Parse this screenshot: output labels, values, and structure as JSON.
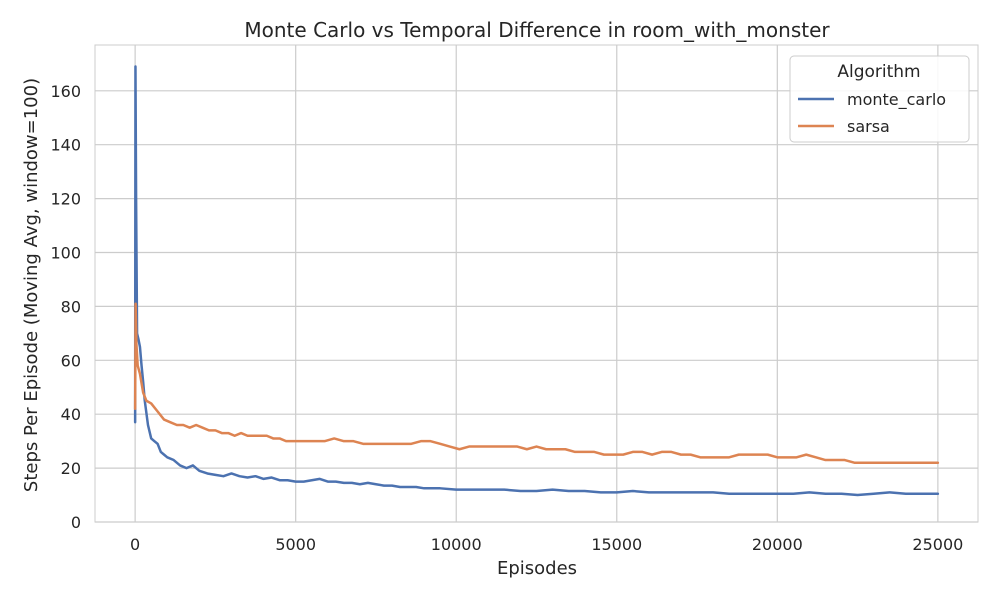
{
  "chart_data": {
    "type": "line",
    "title": "Monte Carlo vs Temporal Difference in room_with_monster",
    "xlabel": "Episodes",
    "ylabel": "Steps Per Episode (Moving Avg, window=100)",
    "xlim": [
      -1250,
      26250
    ],
    "ylim": [
      0,
      177
    ],
    "x_ticks": [
      0,
      5000,
      10000,
      15000,
      20000,
      25000
    ],
    "y_ticks": [
      0,
      20,
      40,
      60,
      80,
      100,
      120,
      140,
      160
    ],
    "grid": true,
    "legend": {
      "title": "Algorithm",
      "placement": "top-right"
    },
    "series": [
      {
        "name": "monte_carlo",
        "color": "#4c72b0",
        "points": [
          [
            0,
            37
          ],
          [
            10,
            169
          ],
          [
            30,
            120
          ],
          [
            60,
            70
          ],
          [
            100,
            68
          ],
          [
            150,
            65
          ],
          [
            200,
            58
          ],
          [
            250,
            52
          ],
          [
            300,
            45
          ],
          [
            400,
            36
          ],
          [
            500,
            31
          ],
          [
            600,
            30
          ],
          [
            700,
            29
          ],
          [
            800,
            26
          ],
          [
            900,
            25
          ],
          [
            1000,
            24
          ],
          [
            1200,
            23
          ],
          [
            1400,
            21
          ],
          [
            1600,
            20
          ],
          [
            1800,
            21
          ],
          [
            2000,
            19
          ],
          [
            2250,
            18
          ],
          [
            2500,
            17.5
          ],
          [
            2750,
            17
          ],
          [
            3000,
            18
          ],
          [
            3250,
            17
          ],
          [
            3500,
            16.5
          ],
          [
            3750,
            17
          ],
          [
            4000,
            16
          ],
          [
            4250,
            16.5
          ],
          [
            4500,
            15.5
          ],
          [
            4750,
            15.5
          ],
          [
            5000,
            15
          ],
          [
            5250,
            15
          ],
          [
            5500,
            15.5
          ],
          [
            5750,
            16
          ],
          [
            6000,
            15
          ],
          [
            6250,
            15
          ],
          [
            6500,
            14.5
          ],
          [
            6750,
            14.5
          ],
          [
            7000,
            14
          ],
          [
            7250,
            14.5
          ],
          [
            7500,
            14
          ],
          [
            7750,
            13.5
          ],
          [
            8000,
            13.5
          ],
          [
            8250,
            13
          ],
          [
            8500,
            13
          ],
          [
            8750,
            13
          ],
          [
            9000,
            12.5
          ],
          [
            9500,
            12.5
          ],
          [
            10000,
            12
          ],
          [
            10500,
            12
          ],
          [
            11000,
            12
          ],
          [
            11500,
            12
          ],
          [
            12000,
            11.5
          ],
          [
            12500,
            11.5
          ],
          [
            13000,
            12
          ],
          [
            13500,
            11.5
          ],
          [
            14000,
            11.5
          ],
          [
            14500,
            11
          ],
          [
            15000,
            11
          ],
          [
            15500,
            11.5
          ],
          [
            16000,
            11
          ],
          [
            16500,
            11
          ],
          [
            17000,
            11
          ],
          [
            17500,
            11
          ],
          [
            18000,
            11
          ],
          [
            18500,
            10.5
          ],
          [
            19000,
            10.5
          ],
          [
            19500,
            10.5
          ],
          [
            20000,
            10.5
          ],
          [
            20500,
            10.5
          ],
          [
            21000,
            11
          ],
          [
            21500,
            10.5
          ],
          [
            22000,
            10.5
          ],
          [
            22500,
            10
          ],
          [
            23000,
            10.5
          ],
          [
            23500,
            11
          ],
          [
            24000,
            10.5
          ],
          [
            24500,
            10.5
          ],
          [
            25000,
            10.5
          ]
        ]
      },
      {
        "name": "sarsa",
        "color": "#dd8452",
        "points": [
          [
            0,
            42
          ],
          [
            15,
            81
          ],
          [
            40,
            66
          ],
          [
            80,
            58
          ],
          [
            150,
            55
          ],
          [
            250,
            48
          ],
          [
            350,
            45
          ],
          [
            500,
            44
          ],
          [
            700,
            41
          ],
          [
            900,
            38
          ],
          [
            1100,
            37
          ],
          [
            1300,
            36
          ],
          [
            1500,
            36
          ],
          [
            1700,
            35
          ],
          [
            1900,
            36
          ],
          [
            2100,
            35
          ],
          [
            2300,
            34
          ],
          [
            2500,
            34
          ],
          [
            2700,
            33
          ],
          [
            2900,
            33
          ],
          [
            3100,
            32
          ],
          [
            3300,
            33
          ],
          [
            3500,
            32
          ],
          [
            3700,
            32
          ],
          [
            3900,
            32
          ],
          [
            4100,
            32
          ],
          [
            4300,
            31
          ],
          [
            4500,
            31
          ],
          [
            4700,
            30
          ],
          [
            5000,
            30
          ],
          [
            5300,
            30
          ],
          [
            5600,
            30
          ],
          [
            5900,
            30
          ],
          [
            6200,
            31
          ],
          [
            6500,
            30
          ],
          [
            6800,
            30
          ],
          [
            7100,
            29
          ],
          [
            7400,
            29
          ],
          [
            7700,
            29
          ],
          [
            8000,
            29
          ],
          [
            8300,
            29
          ],
          [
            8600,
            29
          ],
          [
            8900,
            30
          ],
          [
            9200,
            30
          ],
          [
            9500,
            29
          ],
          [
            9800,
            28
          ],
          [
            10100,
            27
          ],
          [
            10400,
            28
          ],
          [
            10700,
            28
          ],
          [
            11000,
            28
          ],
          [
            11300,
            28
          ],
          [
            11600,
            28
          ],
          [
            11900,
            28
          ],
          [
            12200,
            27
          ],
          [
            12500,
            28
          ],
          [
            12800,
            27
          ],
          [
            13100,
            27
          ],
          [
            13400,
            27
          ],
          [
            13700,
            26
          ],
          [
            14000,
            26
          ],
          [
            14300,
            26
          ],
          [
            14600,
            25
          ],
          [
            14900,
            25
          ],
          [
            15200,
            25
          ],
          [
            15500,
            26
          ],
          [
            15800,
            26
          ],
          [
            16100,
            25
          ],
          [
            16400,
            26
          ],
          [
            16700,
            26
          ],
          [
            17000,
            25
          ],
          [
            17300,
            25
          ],
          [
            17600,
            24
          ],
          [
            17900,
            24
          ],
          [
            18200,
            24
          ],
          [
            18500,
            24
          ],
          [
            18800,
            25
          ],
          [
            19100,
            25
          ],
          [
            19400,
            25
          ],
          [
            19700,
            25
          ],
          [
            20000,
            24
          ],
          [
            20300,
            24
          ],
          [
            20600,
            24
          ],
          [
            20900,
            25
          ],
          [
            21200,
            24
          ],
          [
            21500,
            23
          ],
          [
            21800,
            23
          ],
          [
            22100,
            23
          ],
          [
            22400,
            22
          ],
          [
            22700,
            22
          ],
          [
            23000,
            22
          ],
          [
            23300,
            22
          ],
          [
            23600,
            22
          ],
          [
            23900,
            22
          ],
          [
            24200,
            22
          ],
          [
            24500,
            22
          ],
          [
            24800,
            22
          ],
          [
            25000,
            22
          ]
        ]
      }
    ]
  }
}
